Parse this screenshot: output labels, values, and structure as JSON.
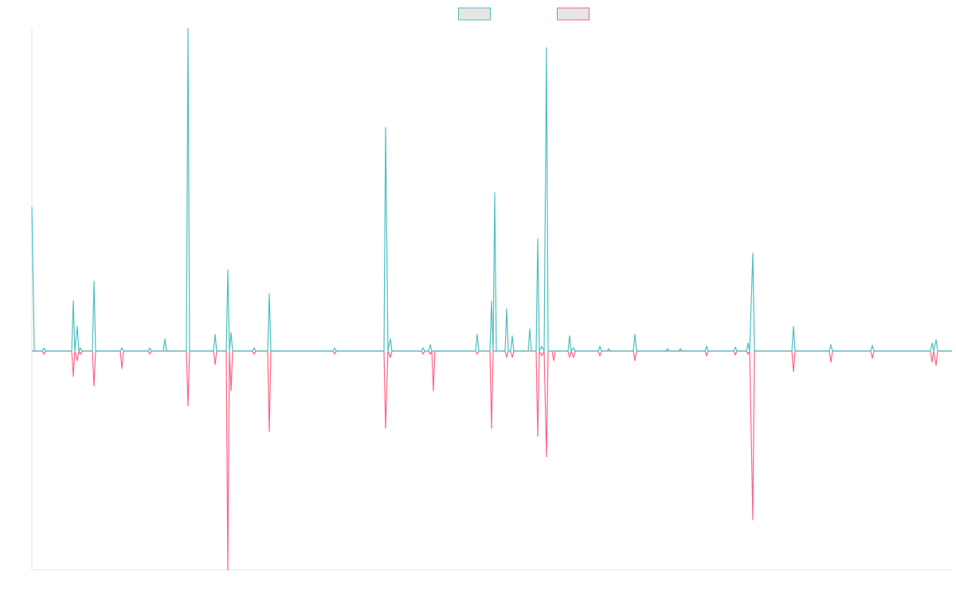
{
  "chart_data": {
    "type": "line",
    "legend": "top",
    "xlim": [
      0,
      1155
    ],
    "ylim": [
      -275,
      405
    ],
    "x": [
      0,
      3,
      13,
      15,
      17,
      50,
      52,
      54,
      57,
      59,
      61,
      63,
      76,
      78,
      80,
      111,
      113,
      115,
      146,
      148,
      150,
      165,
      167,
      169,
      194,
      196,
      198,
      228,
      230,
      232,
      244,
      246,
      248,
      250,
      252,
      277,
      279,
      281,
      296,
      298,
      300,
      378,
      380,
      382,
      442,
      444,
      447,
      450,
      452,
      489,
      491,
      493,
      498,
      500,
      502,
      504,
      506,
      557,
      559,
      561,
      575,
      577,
      579,
      581,
      583,
      594,
      596,
      598,
      601,
      603,
      605,
      623,
      625,
      627,
      633,
      635,
      637,
      640,
      643,
      646,
      648,
      653,
      655,
      657,
      673,
      675,
      677,
      680,
      682,
      711,
      713,
      715,
      722,
      724,
      726,
      755,
      757,
      759,
      796,
      798,
      800,
      812,
      814,
      816,
      845,
      847,
      849,
      881,
      883,
      885,
      897,
      899,
      901,
      905,
      907,
      954,
      956,
      958,
      1001,
      1003,
      1005,
      1053,
      1055,
      1057,
      1128,
      1130,
      1132,
      1135,
      1137,
      1155
    ],
    "series": [
      {
        "color": "#ff6384",
        "values": [
          0,
          0,
          0,
          -4,
          0,
          0,
          -32,
          0,
          -12,
          0,
          -4,
          0,
          0,
          -44,
          0,
          0,
          -22,
          0,
          0,
          -4,
          0,
          0,
          0,
          0,
          0,
          -69,
          0,
          0,
          -17,
          0,
          0,
          -275,
          0,
          -50,
          0,
          0,
          -4,
          0,
          0,
          -101,
          0,
          0,
          -4,
          0,
          0,
          -97,
          0,
          -8,
          0,
          0,
          -4,
          0,
          0,
          -4,
          0,
          -50,
          0,
          0,
          -4,
          0,
          0,
          -97,
          0,
          0,
          0,
          0,
          -8,
          0,
          0,
          -8,
          0,
          0,
          0,
          0,
          0,
          -107,
          0,
          -6,
          0,
          -133,
          0,
          0,
          -12,
          0,
          0,
          -8,
          0,
          -8,
          0,
          0,
          -6,
          0,
          0,
          0,
          0,
          0,
          -12,
          0,
          0,
          0,
          0,
          0,
          0,
          0,
          0,
          -6,
          0,
          0,
          -5,
          0,
          0,
          -4,
          0,
          -212,
          0,
          0,
          -26,
          0,
          0,
          -14,
          0,
          0,
          -9,
          0,
          0,
          -14,
          0,
          -18,
          0,
          0
        ]
      },
      {
        "color": "#4bc0c0",
        "values": [
          181,
          0,
          0,
          4,
          0,
          0,
          63,
          0,
          31,
          0,
          4,
          0,
          0,
          88,
          0,
          0,
          4,
          0,
          0,
          4,
          0,
          0,
          15,
          0,
          0,
          405,
          0,
          0,
          21,
          0,
          0,
          102,
          0,
          23,
          0,
          0,
          4,
          0,
          0,
          72,
          0,
          0,
          4,
          0,
          0,
          281,
          0,
          15,
          0,
          0,
          4,
          0,
          0,
          8,
          0,
          0,
          0,
          0,
          21,
          0,
          0,
          63,
          0,
          199,
          0,
          0,
          53,
          0,
          0,
          19,
          0,
          0,
          28,
          0,
          0,
          141,
          0,
          6,
          0,
          381,
          0,
          0,
          0,
          0,
          0,
          19,
          0,
          4,
          0,
          0,
          6,
          0,
          0,
          3,
          0,
          0,
          21,
          0,
          0,
          3,
          0,
          0,
          3,
          0,
          0,
          6,
          0,
          0,
          5,
          0,
          0,
          10,
          0,
          123,
          0,
          0,
          31,
          0,
          0,
          8,
          0,
          0,
          7,
          0,
          0,
          10,
          0,
          14,
          0,
          0
        ]
      }
    ]
  }
}
